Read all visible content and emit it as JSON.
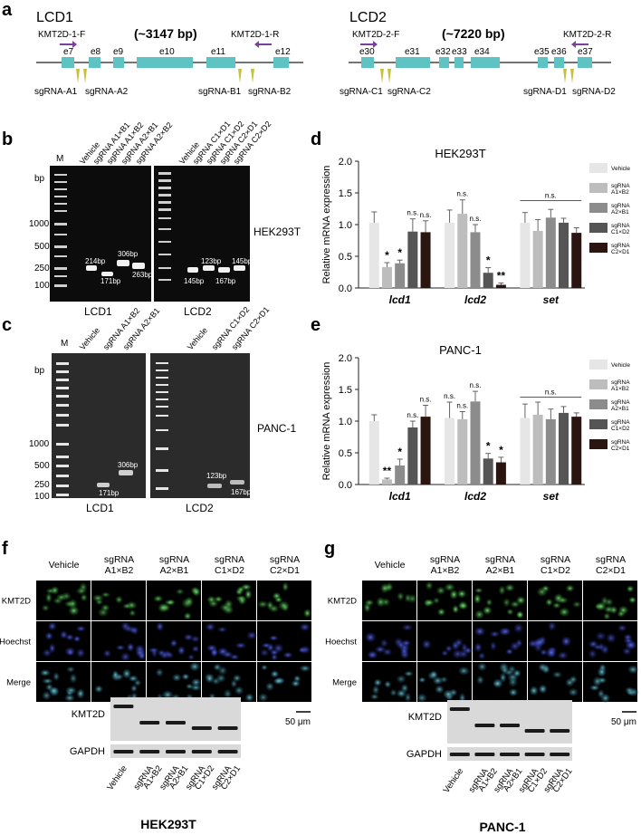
{
  "panels": {
    "a": "a",
    "b": "b",
    "c": "c",
    "d": "d",
    "e": "e",
    "f": "f",
    "g": "g"
  },
  "panel_a": {
    "lcd1": {
      "title": "LCD1",
      "size": "(~3147 bp)",
      "primer_f": "KMT2D-1-F",
      "primer_r": "KMT2D-1-R",
      "exons": [
        "e7",
        "e8",
        "e9",
        "e10",
        "e11",
        "e12"
      ],
      "sgrnas": [
        "sgRNA-A1",
        "sgRNA-A2",
        "sgRNA-B1",
        "sgRNA-B2"
      ]
    },
    "lcd2": {
      "title": "LCD2",
      "size": "(~7220 bp)",
      "primer_f": "KMT2D-2-F",
      "primer_r": "KMT2D-2-R",
      "exons": [
        "e30",
        "e31",
        "e32",
        "e33",
        "e34",
        "e35",
        "e36",
        "e37"
      ],
      "sgrnas": [
        "sgRNA-C1",
        "sgRNA-C2",
        "sgRNA-D1",
        "sgRNA-D2"
      ]
    },
    "colors": {
      "exon": "#5fc3c3",
      "primer": "#7b3fa0",
      "sgrna": "#c8c040"
    }
  },
  "panel_b": {
    "marker": "M",
    "bp": "bp",
    "ladder": [
      "1000",
      "500",
      "250",
      "100"
    ],
    "lcd1_lanes": [
      "Vehicle",
      "sgRNA A1×B1",
      "sgRNA A1×B2",
      "sgRNA A2×B1",
      "sgRNA A2×B2"
    ],
    "lcd2_lanes": [
      "Vehicle",
      "sgRNA C1×D1",
      "sgRNA C1×D2",
      "sgRNA C2×D1",
      "sgRNA C2×D2"
    ],
    "lcd1_bands": [
      "214bp",
      "171bp",
      "306bp",
      "263bp"
    ],
    "lcd2_bands": [
      "145bp",
      "123bp",
      "167bp",
      "145bp"
    ],
    "cell": "HEK293T",
    "gel1": "LCD1",
    "gel2": "LCD2"
  },
  "panel_c": {
    "marker": "M",
    "bp": "bp",
    "ladder": [
      "1000",
      "500",
      "250",
      "100"
    ],
    "lcd1_lanes": [
      "Vehicle",
      "sgRNA A1×B2",
      "sgRNA A2×B1"
    ],
    "lcd2_lanes": [
      "Vehicle",
      "sgRNA C1×D2",
      "sgRNA C2×D1"
    ],
    "lcd1_bands": [
      "171bp",
      "306bp"
    ],
    "lcd2_bands": [
      "123bp",
      "167bp"
    ],
    "cell": "PANC-1",
    "gel1": "LCD1",
    "gel2": "LCD2"
  },
  "chart_data": [
    {
      "type": "bar",
      "title": "HEK293T",
      "ylabel": "Relative mRNA expression",
      "ylim": [
        0,
        2.0
      ],
      "yticks": [
        "0.0",
        "0.5",
        "1.0",
        "1.5",
        "2.0"
      ],
      "categories": [
        "lcd1",
        "lcd2",
        "set"
      ],
      "series": [
        {
          "name": "Vehicle",
          "color": "#e6e6e6",
          "values": [
            1.03,
            1.03,
            1.03
          ],
          "errors": [
            0.17,
            0.2,
            0.16
          ]
        },
        {
          "name": "sgRNA A1×B2",
          "color": "#bdbdbd",
          "values": [
            0.33,
            1.17,
            0.9
          ],
          "errors": [
            0.07,
            0.22,
            0.18
          ]
        },
        {
          "name": "sgRNA A2×B1",
          "color": "#8c8c8c",
          "values": [
            0.39,
            0.88,
            1.11
          ],
          "errors": [
            0.05,
            0.12,
            0.13
          ]
        },
        {
          "name": "sgRNA C1×D2",
          "color": "#555555",
          "values": [
            0.89,
            0.24,
            1.03
          ],
          "errors": [
            0.2,
            0.08,
            0.07
          ]
        },
        {
          "name": "sgRNA C2×D1",
          "color": "#2a1510",
          "values": [
            0.88,
            0.05,
            0.87
          ],
          "errors": [
            0.18,
            0.03,
            0.08
          ]
        }
      ],
      "annotations": [
        [
          "*",
          "*",
          "n.s.",
          "n.s."
        ],
        [
          "n.s.",
          "n.s.",
          "*",
          "**"
        ],
        [
          "n.s."
        ]
      ]
    },
    {
      "type": "bar",
      "title": "PANC-1",
      "ylabel": "Relative mRNA expression",
      "ylim": [
        0,
        2.0
      ],
      "yticks": [
        "0.0",
        "0.5",
        "1.0",
        "1.5",
        "2.0"
      ],
      "categories": [
        "lcd1",
        "lcd2",
        "set"
      ],
      "series": [
        {
          "name": "Vehicle",
          "color": "#e6e6e6",
          "values": [
            1.0,
            1.05,
            1.05
          ],
          "errors": [
            0.1,
            0.25,
            0.22
          ]
        },
        {
          "name": "sgRNA A1×B2",
          "color": "#bdbdbd",
          "values": [
            0.08,
            1.03,
            1.1
          ],
          "errors": [
            0.02,
            0.12,
            0.2
          ]
        },
        {
          "name": "sgRNA A2×B1",
          "color": "#8c8c8c",
          "values": [
            0.3,
            1.31,
            1.03
          ],
          "errors": [
            0.1,
            0.16,
            0.16
          ]
        },
        {
          "name": "sgRNA C1×D2",
          "color": "#555555",
          "values": [
            0.9,
            0.41,
            1.13
          ],
          "errors": [
            0.1,
            0.08,
            0.1
          ]
        },
        {
          "name": "sgRNA C2×D1",
          "color": "#2a1510",
          "values": [
            1.07,
            0.35,
            1.07
          ],
          "errors": [
            0.18,
            0.08,
            0.06
          ]
        }
      ],
      "annotations": [
        [
          "**",
          "*",
          "n.s.",
          "n.s."
        ],
        [
          "n.s.",
          "n.s.",
          "n.s.",
          "*",
          "*"
        ],
        [
          "n.s."
        ]
      ]
    }
  ],
  "panel_f": {
    "columns": [
      "Vehicle",
      "sgRNA\nA1×B2",
      "sgRNA\nA2×B1",
      "sgRNA\nC1×D2",
      "sgRNA\nC2×D1"
    ],
    "rows": [
      "KMT2D",
      "Hoechst",
      "Merge"
    ],
    "scale": "50 μm",
    "blot_rows": [
      "KMT2D",
      "GAPDH"
    ],
    "blot_lanes": [
      "Vehicle",
      "sgRNA\nA1×B2",
      "sgRNA\nA2×B1",
      "sgRNA\nC1×D2",
      "sgRNA\nC2×D1"
    ],
    "cell": "HEK293T"
  },
  "panel_g": {
    "columns": [
      "Vehicle",
      "sgRNA\nA1×B2",
      "sgRNA\nA2×B1",
      "sgRNA\nC1×D2",
      "sgRNA\nC2×D1"
    ],
    "rows": [
      "KMT2D",
      "Hoechst",
      "Merge"
    ],
    "scale": "50 μm",
    "blot_rows": [
      "KMT2D",
      "GAPDH"
    ],
    "blot_lanes": [
      "Vehicle",
      "sgRNA\nA1×B2",
      "sgRNA\nA2×B1",
      "sgRNA\nC1×D2",
      "sgRNA\nC2×D1"
    ],
    "cell": "PANC-1"
  }
}
